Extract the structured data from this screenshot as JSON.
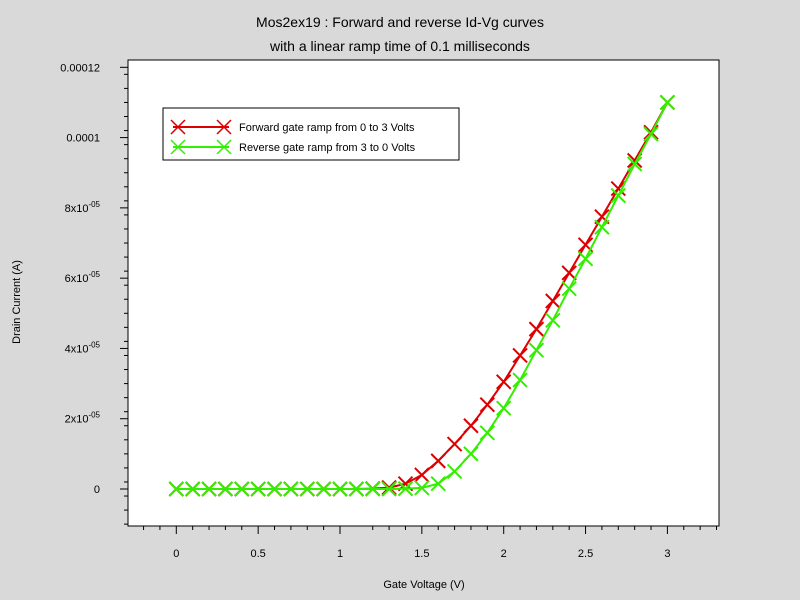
{
  "chart_data": {
    "type": "line",
    "title": "Mos2ex19 : Forward and reverse Id-Vg curves",
    "subtitle": "with a linear ramp time of 0.1 milliseconds",
    "xlabel": "Gate Voltage (V)",
    "ylabel": "Drain Current (A)",
    "xlim": [
      -0.25,
      3.3
    ],
    "ylim": [
      -1e-05,
      0.00012
    ],
    "x_ticks": [
      0,
      0.5,
      1,
      1.5,
      2,
      2.5,
      3
    ],
    "x_tick_labels": [
      "0",
      "0.5",
      "1",
      "1.5",
      "2",
      "2.5",
      "3"
    ],
    "y_ticks": [
      0,
      2e-05,
      4e-05,
      6e-05,
      8e-05,
      0.0001,
      0.00012
    ],
    "y_tick_labels": [
      {
        "base": "0",
        "exp": ""
      },
      {
        "base": "2x10",
        "exp": "-05"
      },
      {
        "base": "4x10",
        "exp": "-05"
      },
      {
        "base": "6x10",
        "exp": "-05"
      },
      {
        "base": "8x10",
        "exp": "-05"
      },
      {
        "base": "0.0001",
        "exp": ""
      },
      {
        "base": "0.00012",
        "exp": ""
      }
    ],
    "grid": false,
    "legend_position": "top-left",
    "series": [
      {
        "name": "Forward gate ramp from 0 to 3 Volts",
        "color": "#dd0000",
        "marker": "x",
        "x": [
          0,
          0.1,
          0.2,
          0.3,
          0.4,
          0.5,
          0.6,
          0.7,
          0.8,
          0.9,
          1.0,
          1.1,
          1.2,
          1.3,
          1.4,
          1.5,
          1.6,
          1.7,
          1.8,
          1.9,
          2.0,
          2.1,
          2.2,
          2.3,
          2.4,
          2.5,
          2.6,
          2.7,
          2.8,
          2.9,
          3.0
        ],
        "y": [
          0,
          0,
          0,
          0,
          0,
          0,
          0,
          0,
          0,
          0,
          0,
          0,
          1e-07,
          4e-07,
          1.5e-06,
          4e-06,
          8e-06,
          1.28e-05,
          1.8e-05,
          2.4e-05,
          3.05e-05,
          3.8e-05,
          4.55e-05,
          5.35e-05,
          6.15e-05,
          6.95e-05,
          7.75e-05,
          8.55e-05,
          9.35e-05,
          0.0001015,
          0.00011
        ]
      },
      {
        "name": "Reverse gate ramp from 3 to 0 Volts",
        "color": "#33ee00",
        "marker": "x",
        "x": [
          3.0,
          2.9,
          2.8,
          2.7,
          2.6,
          2.5,
          2.4,
          2.3,
          2.2,
          2.1,
          2.0,
          1.9,
          1.8,
          1.7,
          1.6,
          1.5,
          1.4,
          1.3,
          1.2,
          1.1,
          1.0,
          0.9,
          0.8,
          0.7,
          0.6,
          0.5,
          0.4,
          0.3,
          0.2,
          0.1,
          0
        ],
        "y": [
          0.00011,
          0.000101,
          9.25e-05,
          8.35e-05,
          7.45e-05,
          6.55e-05,
          5.7e-05,
          4.8e-05,
          3.95e-05,
          3.1e-05,
          2.3e-05,
          1.6e-05,
          1e-05,
          5e-06,
          1.5e-06,
          3e-07,
          1e-07,
          0,
          0,
          0,
          0,
          0,
          0,
          0,
          0,
          0,
          0,
          0,
          0,
          0,
          0
        ]
      }
    ]
  }
}
